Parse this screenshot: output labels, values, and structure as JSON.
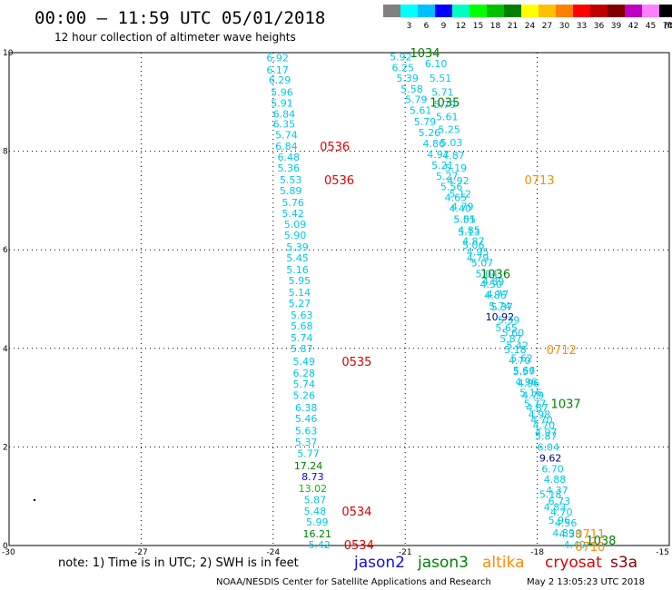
{
  "header": {
    "title": "00:00 – 11:59 UTC 05/01/2018",
    "subtitle": "12 hour collection of altimeter wave heights"
  },
  "scale": {
    "unit_label": "(ft)",
    "bins": [
      {
        "label": "",
        "color": "#808080"
      },
      {
        "label": "3",
        "color": "#00ffff"
      },
      {
        "label": "6",
        "color": "#00bfff"
      },
      {
        "label": "9",
        "color": "#0000ff"
      },
      {
        "label": "12",
        "color": "#00ffbf"
      },
      {
        "label": "15",
        "color": "#00ff00"
      },
      {
        "label": "18",
        "color": "#00c000"
      },
      {
        "label": "21",
        "color": "#008000"
      },
      {
        "label": "24",
        "color": "#ffff00"
      },
      {
        "label": "27",
        "color": "#ffc000"
      },
      {
        "label": "30",
        "color": "#ff8000"
      },
      {
        "label": "33",
        "color": "#ff0000"
      },
      {
        "label": "36",
        "color": "#c00000"
      },
      {
        "label": "39",
        "color": "#800000"
      },
      {
        "label": "42",
        "color": "#c000c0"
      },
      {
        "label": "45",
        "color": "#ff80ff"
      },
      {
        "label": "70",
        "color": "#000000"
      }
    ]
  },
  "axes": {
    "x_ticks": [
      "-30",
      "-27",
      "-24",
      "-21",
      "-18",
      "-15"
    ],
    "y_ticks": [
      "0",
      "2",
      "4",
      "6",
      "8",
      "10"
    ],
    "x_range": [
      -30,
      -15
    ],
    "y_range": [
      0,
      10
    ]
  },
  "satellites": [
    {
      "name": "jason2",
      "color": "#1010e0"
    },
    {
      "name": "jason3",
      "color": "#008000"
    },
    {
      "name": "altika",
      "color": "#ff8c00"
    },
    {
      "name": "cryosat",
      "color": "#e00000"
    },
    {
      "name": "s3a",
      "color": "#8b0000"
    }
  ],
  "footer": {
    "note": "note:  1) Time is in UTC;  2) SWH is in feet",
    "credit": "NOAA/NESDIS Center for Satellite Applications and Research",
    "timestamp": "May  2 13:05:23 UTC 2018"
  },
  "colors": {
    "cyan": "#00c8e6",
    "cyan_light": "#00d0d0",
    "blue": "#0000ff",
    "navy": "#000080",
    "green": "#008000",
    "light_green": "#00c000",
    "orange": "#ff8c00",
    "red": "#e00000"
  },
  "tracks": {
    "track1": [
      {
        "v": "6.92",
        "lon": -23.9,
        "lat": 9.9,
        "c": "cyan"
      },
      {
        "v": "6.17",
        "lon": -23.9,
        "lat": 9.65,
        "c": "cyan"
      },
      {
        "v": "6.29",
        "lon": -23.85,
        "lat": 9.45,
        "c": "cyan"
      },
      {
        "v": "5.96",
        "lon": -23.8,
        "lat": 9.2,
        "c": "cyan"
      },
      {
        "v": "5.91",
        "lon": -23.8,
        "lat": 8.98,
        "c": "cyan"
      },
      {
        "v": "6.84",
        "lon": -23.75,
        "lat": 8.76,
        "c": "cyan"
      },
      {
        "v": "6.35",
        "lon": -23.75,
        "lat": 8.55,
        "c": "cyan"
      },
      {
        "v": "5.74",
        "lon": -23.7,
        "lat": 8.33,
        "c": "cyan"
      },
      {
        "v": "6.84",
        "lon": -23.7,
        "lat": 8.1,
        "c": "cyan"
      },
      {
        "v": "6.48",
        "lon": -23.65,
        "lat": 7.88,
        "c": "cyan"
      },
      {
        "v": "5.36",
        "lon": -23.65,
        "lat": 7.66,
        "c": "cyan"
      },
      {
        "v": "5.53",
        "lon": -23.6,
        "lat": 7.42,
        "c": "cyan"
      },
      {
        "v": "5.89",
        "lon": -23.6,
        "lat": 7.2,
        "c": "cyan"
      },
      {
        "v": "5.76",
        "lon": -23.55,
        "lat": 6.96,
        "c": "cyan"
      },
      {
        "v": "5.42",
        "lon": -23.55,
        "lat": 6.74,
        "c": "cyan"
      },
      {
        "v": "5.09",
        "lon": -23.5,
        "lat": 6.52,
        "c": "cyan"
      },
      {
        "v": "5.90",
        "lon": -23.5,
        "lat": 6.3,
        "c": "cyan"
      },
      {
        "v": "5.39",
        "lon": -23.45,
        "lat": 6.06,
        "c": "cyan"
      },
      {
        "v": "5.45",
        "lon": -23.45,
        "lat": 5.84,
        "c": "cyan"
      },
      {
        "v": "5.16",
        "lon": -23.45,
        "lat": 5.6,
        "c": "cyan"
      },
      {
        "v": "5.95",
        "lon": -23.4,
        "lat": 5.38,
        "c": "cyan"
      },
      {
        "v": "5.14",
        "lon": -23.4,
        "lat": 5.14,
        "c": "cyan"
      },
      {
        "v": "5.27",
        "lon": -23.4,
        "lat": 4.92,
        "c": "cyan"
      },
      {
        "v": "5.63",
        "lon": -23.35,
        "lat": 4.68,
        "c": "cyan"
      },
      {
        "v": "5.68",
        "lon": -23.35,
        "lat": 4.46,
        "c": "cyan"
      },
      {
        "v": "5.74",
        "lon": -23.35,
        "lat": 4.22,
        "c": "cyan"
      },
      {
        "v": "5.87",
        "lon": -23.35,
        "lat": 4.0,
        "c": "cyan"
      },
      {
        "v": "5.49",
        "lon": -23.3,
        "lat": 3.74,
        "c": "cyan"
      },
      {
        "v": "6.28",
        "lon": -23.3,
        "lat": 3.5,
        "c": "cyan"
      },
      {
        "v": "5.74",
        "lon": -23.3,
        "lat": 3.28,
        "c": "cyan"
      },
      {
        "v": "5.26",
        "lon": -23.3,
        "lat": 3.05,
        "c": "cyan"
      },
      {
        "v": "6.38",
        "lon": -23.25,
        "lat": 2.8,
        "c": "cyan"
      },
      {
        "v": "5.46",
        "lon": -23.25,
        "lat": 2.58,
        "c": "cyan"
      },
      {
        "v": "5.63",
        "lon": -23.25,
        "lat": 2.33,
        "c": "cyan"
      },
      {
        "v": "5.37",
        "lon": -23.25,
        "lat": 2.1,
        "c": "cyan"
      },
      {
        "v": "5.77",
        "lon": -23.2,
        "lat": 1.87,
        "c": "cyan"
      },
      {
        "v": "17.24",
        "lon": -23.2,
        "lat": 1.62,
        "c": "green"
      },
      {
        "v": "8.73",
        "lon": -23.1,
        "lat": 1.4,
        "c": "blue"
      },
      {
        "v": "13.02",
        "lon": -23.1,
        "lat": 1.16,
        "c": "light_green"
      },
      {
        "v": "5.87",
        "lon": -23.05,
        "lat": 0.93,
        "c": "cyan"
      },
      {
        "v": "5.48",
        "lon": -23.05,
        "lat": 0.7,
        "c": "cyan"
      },
      {
        "v": "5.99",
        "lon": -23.0,
        "lat": 0.48,
        "c": "cyan"
      },
      {
        "v": "16.21",
        "lon": -23.0,
        "lat": 0.24,
        "c": "green"
      },
      {
        "v": "5.42",
        "lon": -22.95,
        "lat": 0.02,
        "c": "cyan"
      }
    ],
    "track2": [
      {
        "v": "5.92",
        "lon": -21.1,
        "lat": 9.92,
        "c": "cyan"
      },
      {
        "v": "6.25",
        "lon": -21.05,
        "lat": 9.7,
        "c": "cyan"
      },
      {
        "v": "5.39",
        "lon": -20.95,
        "lat": 9.48,
        "c": "cyan"
      },
      {
        "v": "5.58",
        "lon": -20.85,
        "lat": 9.26,
        "c": "cyan"
      },
      {
        "v": "5.79",
        "lon": -20.75,
        "lat": 9.05,
        "c": "cyan"
      },
      {
        "v": "5.61",
        "lon": -20.65,
        "lat": 8.83,
        "c": "cyan"
      },
      {
        "v": "5.79",
        "lon": -20.55,
        "lat": 8.6,
        "c": "cyan"
      },
      {
        "v": "5.26",
        "lon": -20.45,
        "lat": 8.38,
        "c": "cyan"
      },
      {
        "v": "4.86",
        "lon": -20.35,
        "lat": 8.16,
        "c": "cyan"
      },
      {
        "v": "4.97",
        "lon": -20.25,
        "lat": 7.94,
        "c": "cyan"
      },
      {
        "v": "5.21",
        "lon": -20.15,
        "lat": 7.72,
        "c": "cyan"
      },
      {
        "v": "5.27",
        "lon": -20.05,
        "lat": 7.5,
        "c": "cyan"
      },
      {
        "v": "5.56",
        "lon": -19.95,
        "lat": 7.28,
        "c": "cyan"
      },
      {
        "v": "4.65",
        "lon": -19.85,
        "lat": 7.06,
        "c": "cyan"
      },
      {
        "v": "4.40",
        "lon": -19.75,
        "lat": 6.84,
        "c": "cyan"
      },
      {
        "v": "5.55",
        "lon": -19.65,
        "lat": 6.62,
        "c": "cyan"
      },
      {
        "v": "4.85",
        "lon": -19.55,
        "lat": 6.4,
        "c": "cyan"
      },
      {
        "v": "4.87",
        "lon": -19.45,
        "lat": 6.18,
        "c": "cyan"
      },
      {
        "v": "4.95",
        "lon": -19.35,
        "lat": 5.96,
        "c": "cyan"
      },
      {
        "v": "5.07",
        "lon": -19.25,
        "lat": 5.74,
        "c": "cyan"
      },
      {
        "v": "5.04",
        "lon": -19.15,
        "lat": 5.52,
        "c": "cyan"
      },
      {
        "v": "4.50",
        "lon": -19.05,
        "lat": 5.3,
        "c": "cyan"
      },
      {
        "v": "4.86",
        "lon": -18.95,
        "lat": 5.08,
        "c": "cyan"
      },
      {
        "v": "5.74",
        "lon": -18.85,
        "lat": 4.86,
        "c": "cyan"
      },
      {
        "v": "10.92",
        "lon": -18.85,
        "lat": 4.64,
        "c": "navy"
      },
      {
        "v": "5.65",
        "lon": -18.7,
        "lat": 4.42,
        "c": "cyan"
      },
      {
        "v": "5.87",
        "lon": -18.6,
        "lat": 4.2,
        "c": "cyan"
      },
      {
        "v": "5.18",
        "lon": -18.5,
        "lat": 3.98,
        "c": "cyan"
      },
      {
        "v": "4.70",
        "lon": -18.4,
        "lat": 3.76,
        "c": "cyan"
      },
      {
        "v": "5.57",
        "lon": -18.3,
        "lat": 3.54,
        "c": "cyan"
      },
      {
        "v": "4.96",
        "lon": -18.25,
        "lat": 3.32,
        "c": "cyan"
      },
      {
        "v": "5.16",
        "lon": -18.15,
        "lat": 3.1,
        "c": "cyan"
      },
      {
        "v": "5.77",
        "lon": -18.05,
        "lat": 2.88,
        "c": "cyan"
      },
      {
        "v": "4.98",
        "lon": -17.95,
        "lat": 2.66,
        "c": "cyan"
      },
      {
        "v": "4.70",
        "lon": -17.85,
        "lat": 2.44,
        "c": "cyan"
      },
      {
        "v": "5.87",
        "lon": -17.8,
        "lat": 2.22,
        "c": "cyan"
      },
      {
        "v": "6.04",
        "lon": -17.75,
        "lat": 2.0,
        "c": "cyan"
      },
      {
        "v": "9.62",
        "lon": -17.7,
        "lat": 1.78,
        "c": "navy"
      },
      {
        "v": "6.70",
        "lon": -17.65,
        "lat": 1.56,
        "c": "cyan"
      },
      {
        "v": "4.88",
        "lon": -17.6,
        "lat": 1.34,
        "c": "cyan"
      },
      {
        "v": "4.37",
        "lon": -17.55,
        "lat": 1.12,
        "c": "cyan"
      },
      {
        "v": "6.73",
        "lon": -17.5,
        "lat": 0.9,
        "c": "cyan"
      },
      {
        "v": "4.70",
        "lon": -17.45,
        "lat": 0.68,
        "c": "cyan"
      },
      {
        "v": "4.56",
        "lon": -17.35,
        "lat": 0.46,
        "c": "cyan"
      },
      {
        "v": "4.33",
        "lon": -17.25,
        "lat": 0.24,
        "c": "cyan"
      },
      {
        "v": "4.49",
        "lon": -17.15,
        "lat": 0.02,
        "c": "cyan"
      }
    ],
    "track3": [
      {
        "v": "6.10",
        "lon": -20.3,
        "lat": 9.78,
        "c": "cyan"
      },
      {
        "v": "5.51",
        "lon": -20.2,
        "lat": 9.48,
        "c": "cyan"
      },
      {
        "v": "5.71",
        "lon": -20.15,
        "lat": 9.2,
        "c": "cyan"
      },
      {
        "v": "5.79",
        "lon": -20.1,
        "lat": 8.95,
        "c": "cyan"
      },
      {
        "v": "5.61",
        "lon": -20.05,
        "lat": 8.7,
        "c": "cyan"
      },
      {
        "v": "5.25",
        "lon": -20.0,
        "lat": 8.44,
        "c": "cyan"
      },
      {
        "v": "5.03",
        "lon": -19.95,
        "lat": 8.18,
        "c": "cyan"
      },
      {
        "v": "4.87",
        "lon": -19.9,
        "lat": 7.92,
        "c": "cyan"
      },
      {
        "v": "5.19",
        "lon": -19.85,
        "lat": 7.66,
        "c": "cyan"
      },
      {
        "v": "4.92",
        "lon": -19.8,
        "lat": 7.4,
        "c": "cyan"
      },
      {
        "v": "5.12",
        "lon": -19.75,
        "lat": 7.14,
        "c": "cyan"
      },
      {
        "v": "4.79",
        "lon": -19.7,
        "lat": 6.88,
        "c": "cyan"
      },
      {
        "v": "5.01",
        "lon": -19.65,
        "lat": 6.62,
        "c": "cyan"
      },
      {
        "v": "5.13",
        "lon": -19.55,
        "lat": 6.36,
        "c": "cyan"
      },
      {
        "v": "5.06",
        "lon": -19.45,
        "lat": 6.1,
        "c": "cyan"
      },
      {
        "v": "4.79",
        "lon": -19.35,
        "lat": 5.84,
        "c": "cyan"
      },
      {
        "v": "4.89",
        "lon": -19.0,
        "lat": 5.36,
        "c": "cyan"
      },
      {
        "v": "4.77",
        "lon": -18.9,
        "lat": 5.1,
        "c": "cyan"
      },
      {
        "v": "5.37",
        "lon": -18.8,
        "lat": 4.84,
        "c": "cyan"
      },
      {
        "v": "5.39",
        "lon": -18.65,
        "lat": 4.58,
        "c": "cyan"
      },
      {
        "v": "5.60",
        "lon": -18.55,
        "lat": 4.32,
        "c": "cyan"
      },
      {
        "v": "5.42",
        "lon": -18.45,
        "lat": 4.06,
        "c": "cyan"
      },
      {
        "v": "5.62",
        "lon": -18.35,
        "lat": 3.8,
        "c": "cyan"
      },
      {
        "v": "5.66",
        "lon": -18.3,
        "lat": 3.55,
        "c": "cyan"
      },
      {
        "v": "4.96",
        "lon": -18.2,
        "lat": 3.3,
        "c": "cyan"
      },
      {
        "v": "4.79",
        "lon": -18.1,
        "lat": 3.05,
        "c": "cyan"
      },
      {
        "v": "4.87",
        "lon": -18.0,
        "lat": 2.8,
        "c": "cyan"
      },
      {
        "v": "4.70",
        "lon": -17.9,
        "lat": 2.55,
        "c": "cyan"
      },
      {
        "v": "4.97",
        "lon": -17.8,
        "lat": 2.3,
        "c": "cyan"
      },
      {
        "v": "5.18",
        "lon": -17.7,
        "lat": 1.04,
        "c": "cyan"
      },
      {
        "v": "4.83",
        "lon": -17.6,
        "lat": 0.78,
        "c": "cyan"
      },
      {
        "v": "5.96",
        "lon": -17.5,
        "lat": 0.52,
        "c": "cyan"
      },
      {
        "v": "4.89",
        "lon": -17.4,
        "lat": 0.26,
        "c": "cyan"
      }
    ]
  },
  "labels": [
    {
      "text": "1034",
      "lon": -20.55,
      "lat": 10.0,
      "c": "green"
    },
    {
      "text": "1035",
      "lon": -20.1,
      "lat": 9.0,
      "c": "green"
    },
    {
      "text": "0536",
      "lon": -22.6,
      "lat": 8.1,
      "c": "red"
    },
    {
      "text": "0536",
      "lon": -22.5,
      "lat": 7.42,
      "c": "red"
    },
    {
      "text": "0713",
      "lon": -17.95,
      "lat": 7.42,
      "c": "orange"
    },
    {
      "text": "1036",
      "lon": -18.95,
      "lat": 5.52,
      "c": "green"
    },
    {
      "text": "0712",
      "lon": -17.45,
      "lat": 3.98,
      "c": "orange"
    },
    {
      "text": "0535",
      "lon": -22.1,
      "lat": 3.74,
      "c": "red"
    },
    {
      "text": "1037",
      "lon": -17.35,
      "lat": 2.88,
      "c": "green"
    },
    {
      "text": "0534",
      "lon": -22.1,
      "lat": 0.7,
      "c": "red"
    },
    {
      "text": "0534",
      "lon": -22.05,
      "lat": 0.02,
      "c": "red"
    },
    {
      "text": "0711",
      "lon": -16.8,
      "lat": 0.24,
      "c": "orange"
    },
    {
      "text": "1038",
      "lon": -16.55,
      "lat": 0.11,
      "c": "green"
    },
    {
      "text": "0710",
      "lon": -16.8,
      "lat": -0.02,
      "c": "orange"
    }
  ]
}
